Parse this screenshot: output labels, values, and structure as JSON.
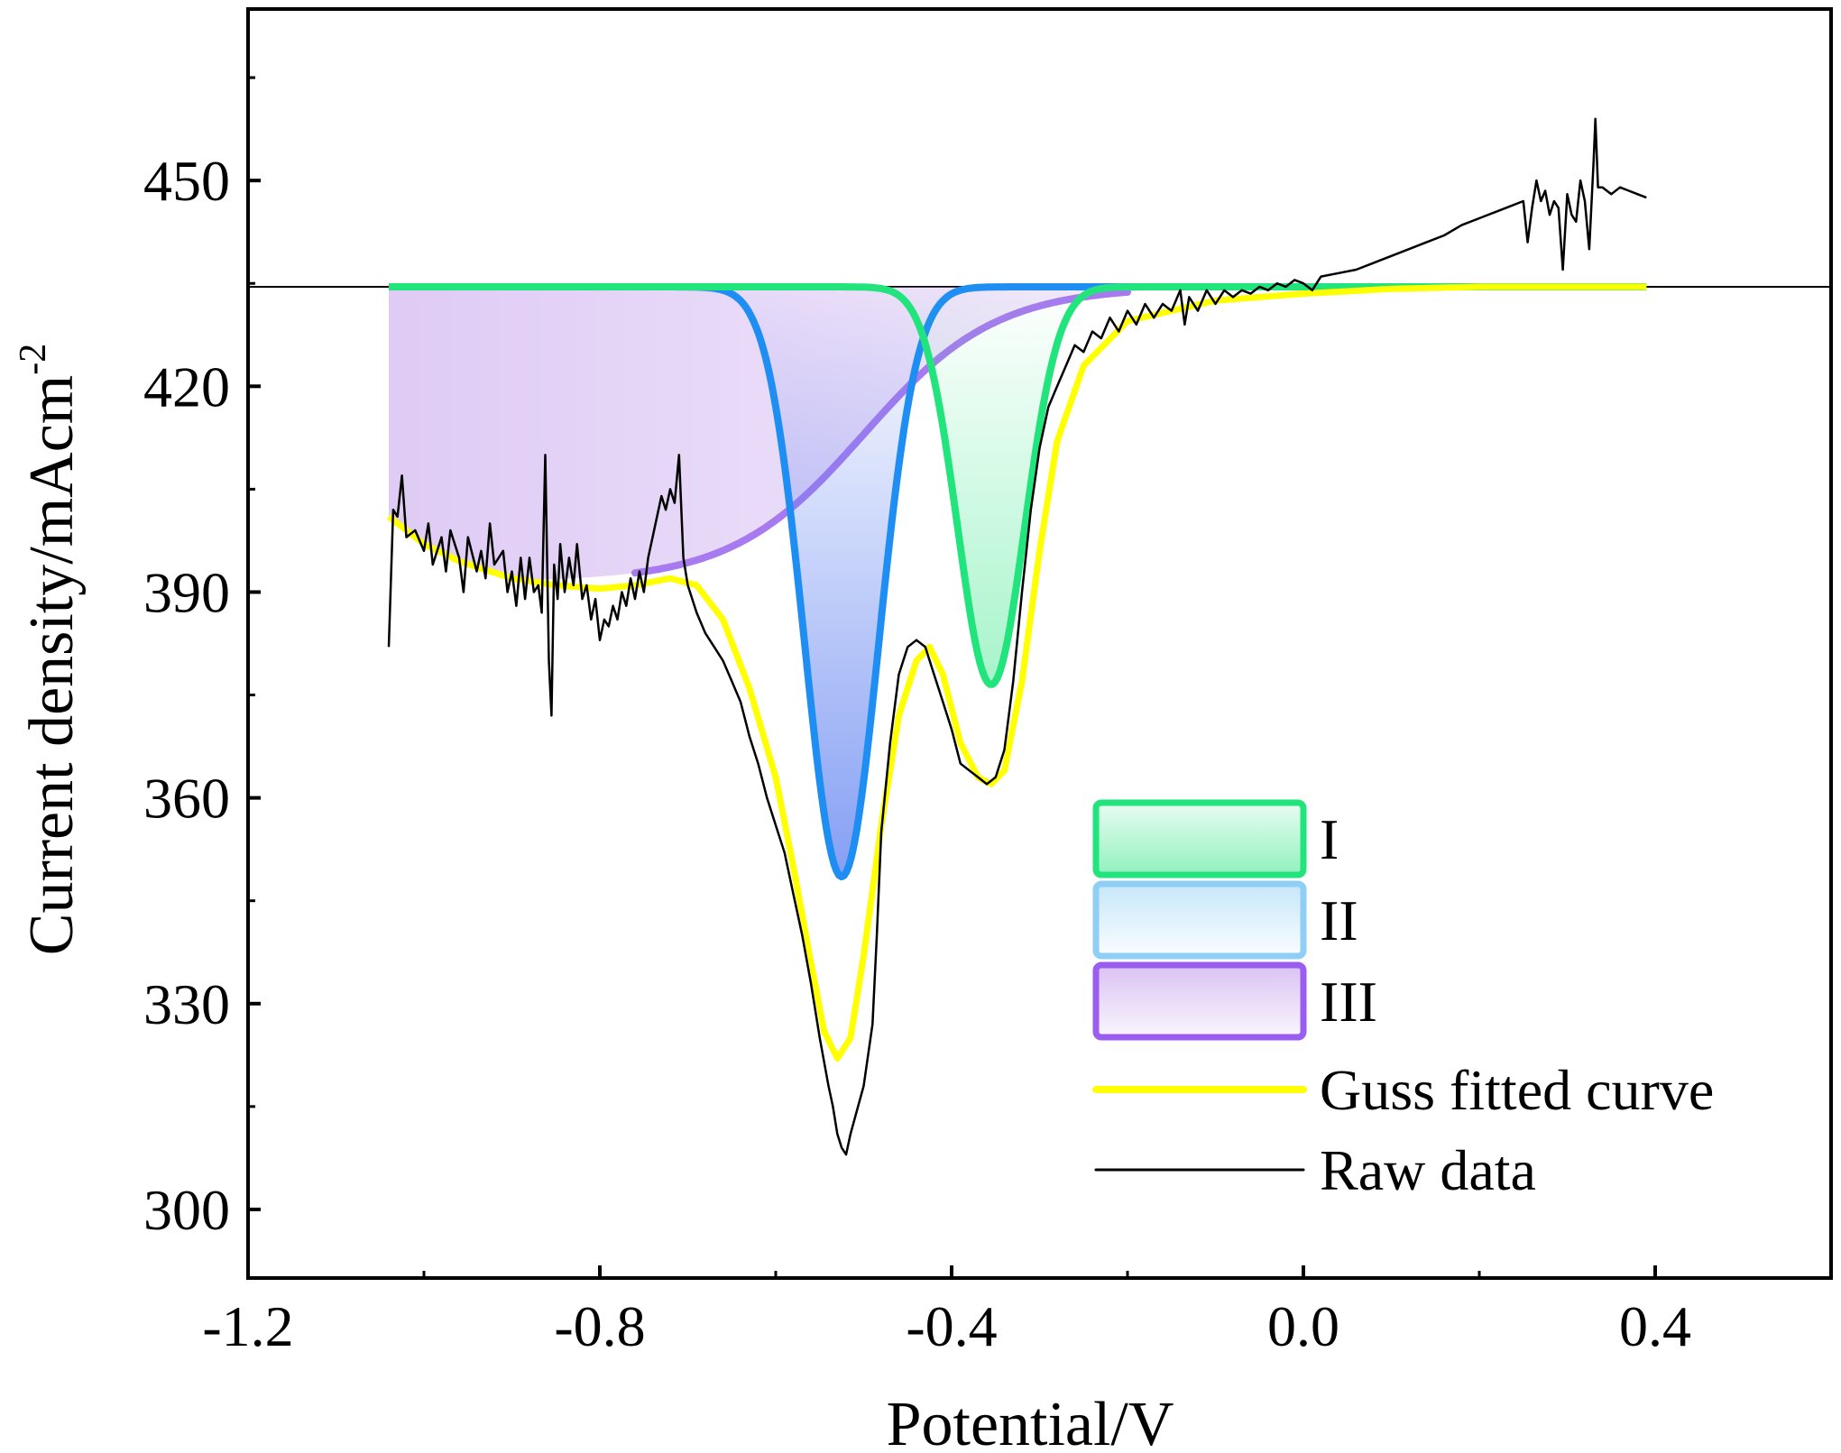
{
  "chart_data": {
    "type": "line",
    "title": "",
    "xlabel": "Potential/V",
    "ylabel_main": "Current density/mAcm",
    "ylabel_sup": "-2",
    "xlim": [
      -1.2,
      0.6
    ],
    "ylim": [
      290,
      475
    ],
    "xticks": [
      -1.2,
      -0.8,
      -0.4,
      0.0,
      0.4
    ],
    "xtick_labels": [
      "-1.2",
      "-0.8",
      "-0.4",
      "0.0",
      "0.4"
    ],
    "yticks": [
      300,
      330,
      360,
      390,
      420,
      450
    ],
    "ytick_labels": [
      "300",
      "330",
      "360",
      "390",
      "420",
      "450"
    ],
    "grid": false,
    "legend_position": "bottom-right",
    "baseline": 434.5,
    "x_range": [
      -1.04,
      0.39
    ],
    "components": [
      {
        "name": "I",
        "kind": "gaussian",
        "center": -0.355,
        "sigma": 0.038,
        "depth": 58,
        "color": "#22e47c",
        "fill_color": "#22e47c"
      },
      {
        "name": "II",
        "kind": "gaussian",
        "center": -0.525,
        "sigma": 0.042,
        "depth": 86,
        "color": "#1f8ef2",
        "fill_color": "#5c7ff0"
      },
      {
        "name": "III",
        "kind": "sigmoid",
        "low": 391.5,
        "center": -0.5,
        "width": 0.075,
        "color": "#a77af0",
        "fill_color": "#c9a8ee"
      }
    ],
    "fitted_curve": {
      "name": "Guss fitted curve",
      "color": "#ffff00",
      "points": [
        [
          -1.04,
          401
        ],
        [
          -1.0,
          397
        ],
        [
          -0.96,
          394.5
        ],
        [
          -0.9,
          392
        ],
        [
          -0.85,
          391
        ],
        [
          -0.8,
          390.5
        ],
        [
          -0.76,
          391
        ],
        [
          -0.72,
          392
        ],
        [
          -0.69,
          391
        ],
        [
          -0.66,
          386
        ],
        [
          -0.63,
          376
        ],
        [
          -0.6,
          363
        ],
        [
          -0.58,
          350
        ],
        [
          -0.56,
          336
        ],
        [
          -0.545,
          326
        ],
        [
          -0.53,
          322
        ],
        [
          -0.515,
          325
        ],
        [
          -0.5,
          337
        ],
        [
          -0.48,
          356
        ],
        [
          -0.46,
          372
        ],
        [
          -0.44,
          380
        ],
        [
          -0.425,
          382
        ],
        [
          -0.41,
          378
        ],
        [
          -0.39,
          368
        ],
        [
          -0.37,
          363
        ],
        [
          -0.355,
          362
        ],
        [
          -0.34,
          364
        ],
        [
          -0.32,
          377
        ],
        [
          -0.3,
          396
        ],
        [
          -0.28,
          412
        ],
        [
          -0.25,
          423
        ],
        [
          -0.2,
          429.5
        ],
        [
          -0.1,
          432.5
        ],
        [
          0.0,
          433.5
        ],
        [
          0.1,
          434.2
        ],
        [
          0.2,
          434.5
        ],
        [
          0.39,
          434.5
        ]
      ]
    },
    "raw_data": {
      "name": "Raw data",
      "color": "#000000",
      "points": [
        [
          -1.04,
          382
        ],
        [
          -1.035,
          402
        ],
        [
          -1.03,
          401
        ],
        [
          -1.025,
          407
        ],
        [
          -1.02,
          398
        ],
        [
          -1.01,
          399
        ],
        [
          -1.0,
          396
        ],
        [
          -0.995,
          400
        ],
        [
          -0.99,
          394
        ],
        [
          -0.98,
          398
        ],
        [
          -0.975,
          393
        ],
        [
          -0.97,
          399
        ],
        [
          -0.96,
          395
        ],
        [
          -0.955,
          390
        ],
        [
          -0.95,
          398
        ],
        [
          -0.94,
          393
        ],
        [
          -0.935,
          396
        ],
        [
          -0.93,
          392
        ],
        [
          -0.925,
          400
        ],
        [
          -0.92,
          394
        ],
        [
          -0.91,
          396
        ],
        [
          -0.905,
          390
        ],
        [
          -0.9,
          393
        ],
        [
          -0.895,
          388
        ],
        [
          -0.89,
          395
        ],
        [
          -0.885,
          389
        ],
        [
          -0.88,
          395
        ],
        [
          -0.875,
          390
        ],
        [
          -0.87,
          391
        ],
        [
          -0.866,
          387
        ],
        [
          -0.862,
          410
        ],
        [
          -0.858,
          380
        ],
        [
          -0.855,
          372
        ],
        [
          -0.852,
          394
        ],
        [
          -0.848,
          389
        ],
        [
          -0.845,
          397
        ],
        [
          -0.84,
          390
        ],
        [
          -0.835,
          395
        ],
        [
          -0.83,
          391
        ],
        [
          -0.826,
          397
        ],
        [
          -0.82,
          389
        ],
        [
          -0.815,
          391
        ],
        [
          -0.81,
          386
        ],
        [
          -0.805,
          389
        ],
        [
          -0.8,
          383
        ],
        [
          -0.795,
          386
        ],
        [
          -0.79,
          385
        ],
        [
          -0.785,
          388
        ],
        [
          -0.78,
          386
        ],
        [
          -0.775,
          390
        ],
        [
          -0.77,
          388
        ],
        [
          -0.765,
          392
        ],
        [
          -0.76,
          389
        ],
        [
          -0.755,
          393
        ],
        [
          -0.75,
          390
        ],
        [
          -0.745,
          395
        ],
        [
          -0.74,
          398
        ],
        [
          -0.735,
          401
        ],
        [
          -0.73,
          404
        ],
        [
          -0.725,
          402
        ],
        [
          -0.72,
          405
        ],
        [
          -0.715,
          403
        ],
        [
          -0.71,
          410
        ],
        [
          -0.705,
          395
        ],
        [
          -0.7,
          391
        ],
        [
          -0.69,
          387
        ],
        [
          -0.68,
          384
        ],
        [
          -0.67,
          382
        ],
        [
          -0.66,
          380
        ],
        [
          -0.65,
          377
        ],
        [
          -0.64,
          374
        ],
        [
          -0.63,
          369
        ],
        [
          -0.62,
          365
        ],
        [
          -0.61,
          360
        ],
        [
          -0.6,
          356
        ],
        [
          -0.59,
          352
        ],
        [
          -0.58,
          346
        ],
        [
          -0.57,
          340
        ],
        [
          -0.56,
          333
        ],
        [
          -0.55,
          325
        ],
        [
          -0.54,
          318
        ],
        [
          -0.535,
          315
        ],
        [
          -0.53,
          311
        ],
        [
          -0.525,
          309
        ],
        [
          -0.52,
          308
        ],
        [
          -0.515,
          311
        ],
        [
          -0.5,
          318
        ],
        [
          -0.49,
          327
        ],
        [
          -0.485,
          340
        ],
        [
          -0.48,
          355
        ],
        [
          -0.47,
          368
        ],
        [
          -0.46,
          378
        ],
        [
          -0.45,
          382
        ],
        [
          -0.44,
          383
        ],
        [
          -0.43,
          382
        ],
        [
          -0.42,
          378
        ],
        [
          -0.41,
          374
        ],
        [
          -0.4,
          370
        ],
        [
          -0.39,
          365
        ],
        [
          -0.38,
          364
        ],
        [
          -0.37,
          363
        ],
        [
          -0.36,
          362
        ],
        [
          -0.35,
          363
        ],
        [
          -0.34,
          367
        ],
        [
          -0.33,
          377
        ],
        [
          -0.32,
          390
        ],
        [
          -0.31,
          402
        ],
        [
          -0.3,
          411
        ],
        [
          -0.29,
          417
        ],
        [
          -0.28,
          420
        ],
        [
          -0.27,
          423
        ],
        [
          -0.26,
          426
        ],
        [
          -0.25,
          425
        ],
        [
          -0.24,
          428
        ],
        [
          -0.23,
          427
        ],
        [
          -0.22,
          430
        ],
        [
          -0.21,
          428
        ],
        [
          -0.2,
          431
        ],
        [
          -0.19,
          429
        ],
        [
          -0.18,
          432
        ],
        [
          -0.17,
          430
        ],
        [
          -0.16,
          432
        ],
        [
          -0.15,
          431
        ],
        [
          -0.14,
          434
        ],
        [
          -0.135,
          429
        ],
        [
          -0.13,
          433
        ],
        [
          -0.12,
          431
        ],
        [
          -0.11,
          434
        ],
        [
          -0.1,
          432
        ],
        [
          -0.09,
          434
        ],
        [
          -0.08,
          433
        ],
        [
          -0.07,
          434
        ],
        [
          -0.06,
          433.5
        ],
        [
          -0.05,
          434.5
        ],
        [
          -0.04,
          434
        ],
        [
          -0.03,
          435
        ],
        [
          -0.02,
          434.5
        ],
        [
          -0.01,
          435.5
        ],
        [
          0.0,
          435
        ],
        [
          0.01,
          434
        ],
        [
          0.02,
          436
        ],
        [
          0.04,
          436.5
        ],
        [
          0.06,
          437
        ],
        [
          0.08,
          438
        ],
        [
          0.1,
          439
        ],
        [
          0.12,
          440
        ],
        [
          0.14,
          441
        ],
        [
          0.16,
          442
        ],
        [
          0.18,
          443.5
        ],
        [
          0.2,
          444.5
        ],
        [
          0.22,
          445.5
        ],
        [
          0.24,
          446.5
        ],
        [
          0.25,
          447
        ],
        [
          0.255,
          441
        ],
        [
          0.26,
          446
        ],
        [
          0.265,
          450
        ],
        [
          0.27,
          447
        ],
        [
          0.275,
          448.5
        ],
        [
          0.28,
          445
        ],
        [
          0.285,
          447
        ],
        [
          0.29,
          446
        ],
        [
          0.295,
          437
        ],
        [
          0.3,
          448
        ],
        [
          0.305,
          445
        ],
        [
          0.31,
          444
        ],
        [
          0.315,
          450
        ],
        [
          0.32,
          447
        ],
        [
          0.325,
          440
        ],
        [
          0.33,
          453
        ],
        [
          0.332,
          459
        ],
        [
          0.335,
          449
        ],
        [
          0.34,
          449
        ],
        [
          0.35,
          448
        ],
        [
          0.36,
          449
        ],
        [
          0.37,
          448.5
        ],
        [
          0.38,
          448
        ],
        [
          0.39,
          447.5
        ]
      ]
    },
    "legend": [
      {
        "label": "I",
        "kind": "swatch",
        "stroke": "#22e47c",
        "fill_color": "#22e47c"
      },
      {
        "label": "II",
        "kind": "swatch",
        "stroke": "#8fcff5",
        "fill_color": "#8fcff5"
      },
      {
        "label": "III",
        "kind": "swatch",
        "stroke": "#9a5df0",
        "fill_color": "#c9a8ee"
      },
      {
        "label": "Guss fitted curve",
        "kind": "line",
        "stroke": "#ffff00",
        "stroke_width": 8
      },
      {
        "label": "Raw data",
        "kind": "line",
        "stroke": "#000000",
        "stroke_width": 3
      }
    ]
  }
}
